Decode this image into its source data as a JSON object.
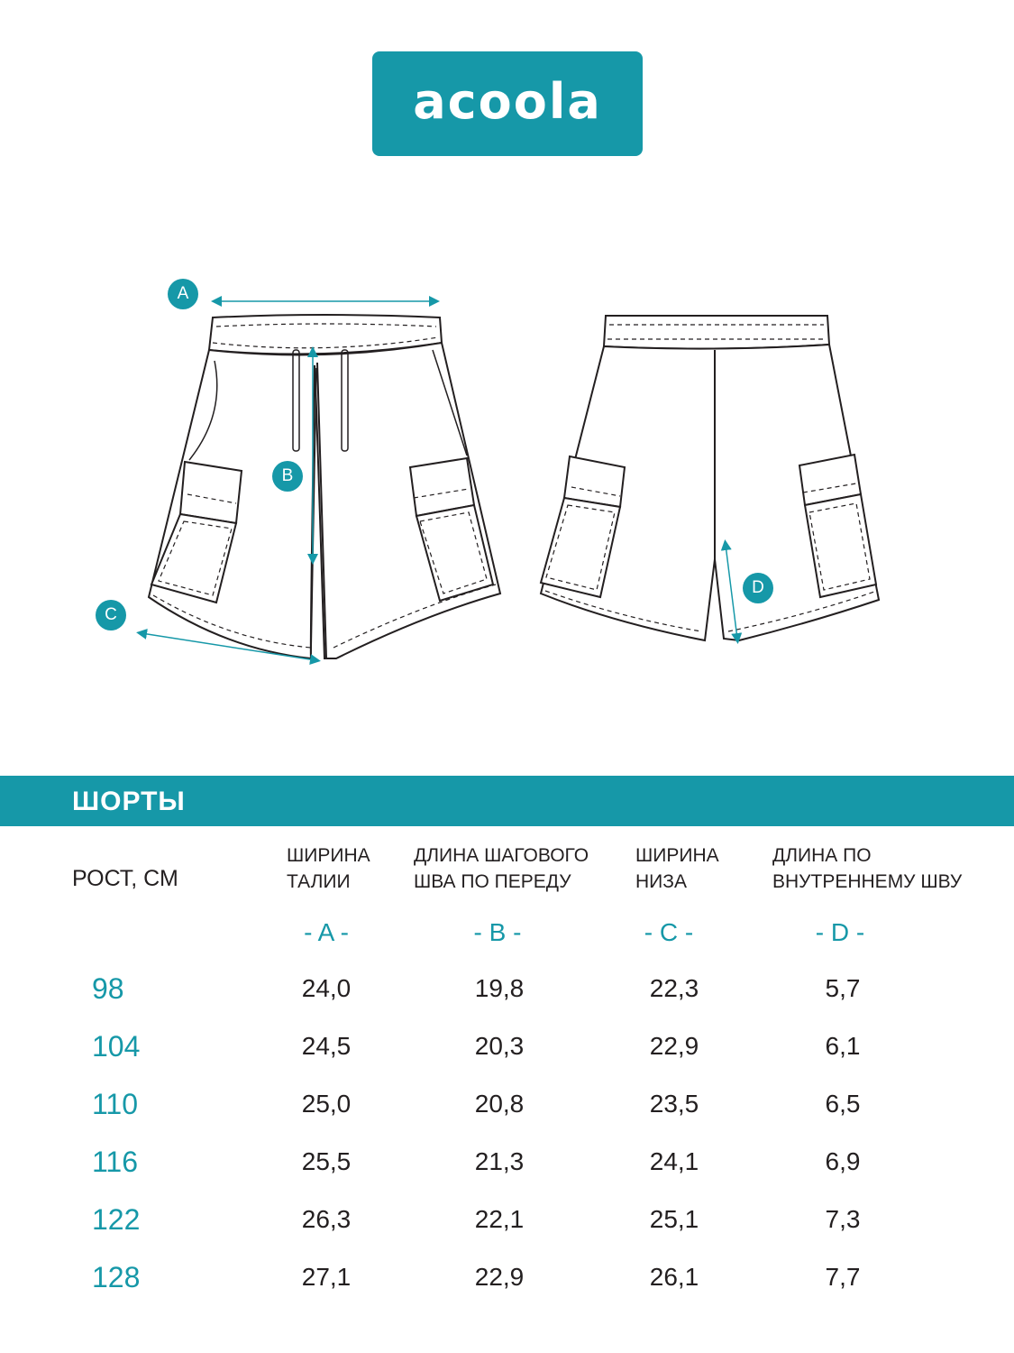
{
  "logo": {
    "text": "acoola"
  },
  "markers": {
    "a": "A",
    "b": "B",
    "c": "C",
    "d": "D"
  },
  "table": {
    "title": "ШОРТЫ",
    "growth_header": "РОСТ, СМ",
    "columns": [
      {
        "line1": "ШИРИНА",
        "line2": "ТАЛИИ",
        "letter": "- A -"
      },
      {
        "line1": "ДЛИНА ШАГОВОГО",
        "line2": "ШВА ПО ПЕРЕДУ",
        "letter": "- B -"
      },
      {
        "line1": "ШИРИНА",
        "line2": "НИЗА",
        "letter": "- C -"
      },
      {
        "line1": "ДЛИНА ПО",
        "line2": "ВНУТРЕННЕМУ ШВУ",
        "letter": "- D -"
      }
    ],
    "rows": [
      {
        "size": "98",
        "a": "24,0",
        "b": "19,8",
        "c": "22,3",
        "d": "5,7"
      },
      {
        "size": "104",
        "a": "24,5",
        "b": "20,3",
        "c": "22,9",
        "d": "6,1"
      },
      {
        "size": "110",
        "a": "25,0",
        "b": "20,8",
        "c": "23,5",
        "d": "6,5"
      },
      {
        "size": "116",
        "a": "25,5",
        "b": "21,3",
        "c": "24,1",
        "d": "6,9"
      },
      {
        "size": "122",
        "a": "26,3",
        "b": "22,1",
        "c": "25,1",
        "d": "7,3"
      },
      {
        "size": "128",
        "a": "27,1",
        "b": "22,9",
        "c": "26,1",
        "d": "7,7"
      }
    ]
  },
  "colors": {
    "accent": "#1698a8",
    "text": "#231f20",
    "line": "#231f20"
  }
}
